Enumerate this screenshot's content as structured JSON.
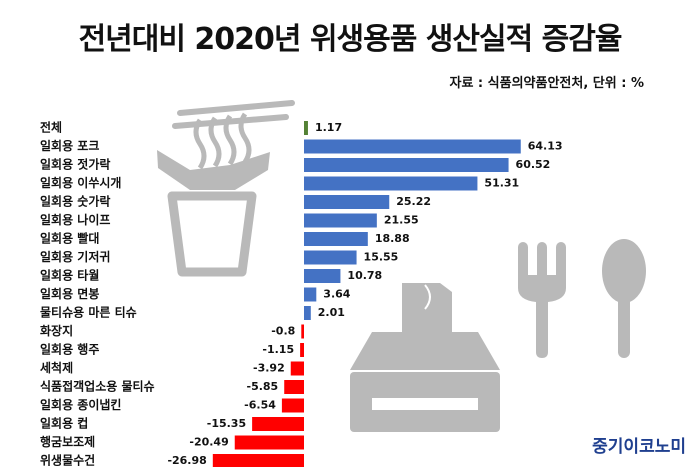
{
  "header": {
    "title": "전년대비 2020년 위생용품 생산실적 증감율",
    "source": "자료 : 식품의약품안전처, 단위 : %"
  },
  "brand": {
    "label": "중기이코노미"
  },
  "colors": {
    "positive": "#4472c4",
    "negative": "#ff0000",
    "total": "#548235",
    "decoration": "#b9b9b9"
  },
  "chart_data": {
    "type": "bar",
    "orientation": "horizontal",
    "title": "전년대비 2020년 위생용품 생산실적 증감율",
    "unit": "%",
    "categories": [
      "전체",
      "일회용 포크",
      "일회용 젓가락",
      "일회용 이쑤시개",
      "일회용 숫가락",
      "일회용 나이프",
      "일회용 빨대",
      "일회용 기저귀",
      "일회용 타월",
      "일회용 면봉",
      "물티슈용 마른 티슈",
      "화장지",
      "일회용 행주",
      "세척제",
      "식품접객업소용 물티슈",
      "일회용 종이냅킨",
      "일회용 컵",
      "행굼보조제",
      "위생물수건"
    ],
    "values": [
      1.17,
      64.13,
      60.52,
      51.31,
      25.22,
      21.55,
      18.88,
      15.55,
      10.78,
      3.64,
      2.01,
      -0.8,
      -1.15,
      -3.92,
      -5.85,
      -6.54,
      -15.35,
      -20.49,
      -26.98
    ],
    "labels": [
      "1.17",
      "64.13",
      "60.52",
      "51.31",
      "25.22",
      "21.55",
      "18.88",
      "15.55",
      "10.78",
      "3.64",
      "2.01",
      "-0.8",
      "-1.15",
      "-3.92",
      "-5.85",
      "-6.54",
      "-15.35",
      "-20.49",
      "-26.98"
    ],
    "xlim": [
      -27,
      65
    ]
  }
}
